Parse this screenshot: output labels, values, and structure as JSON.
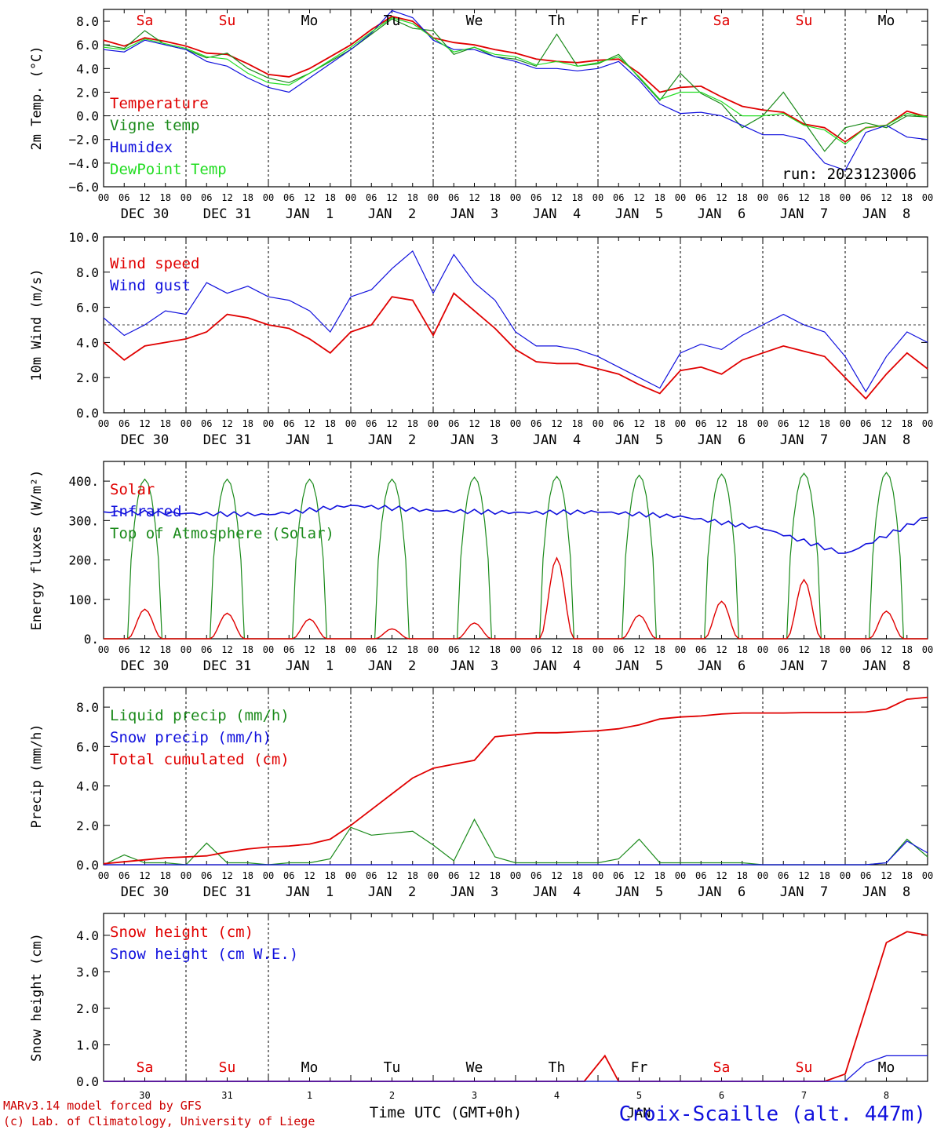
{
  "colors": {
    "red": "#e00000",
    "green": "#1a8a1a",
    "blue": "#1010dd",
    "light_green": "#22dd22",
    "black": "#000000",
    "weekend": "#e00000",
    "weekday": "#000000"
  },
  "day_labels": [
    "Sa",
    "Su",
    "Mo",
    "Tu",
    "We",
    "Th",
    "Fr",
    "Sa",
    "Su",
    "Mo"
  ],
  "day_weekend": [
    true,
    true,
    false,
    false,
    false,
    false,
    false,
    true,
    true,
    false
  ],
  "date_labels": [
    "DEC 30",
    "DEC 31",
    "JAN  1",
    "JAN  2",
    "JAN  3",
    "JAN  4",
    "JAN  5",
    "JAN  6",
    "JAN  7",
    "JAN  8"
  ],
  "hour_labels": [
    "00",
    "06",
    "12",
    "18"
  ],
  "bottom_day_numbers": [
    "30",
    "31",
    "1",
    "2",
    "3",
    "4",
    "5",
    "6",
    "7",
    "8"
  ],
  "run_label": "run: 2023123006",
  "bottom_axis_label": "Time UTC (GMT+0h)",
  "footer": {
    "line1": "MARv3.14 model forced by GFS",
    "line2": "(c) Lab. of Climatology, University of Liege",
    "location": "Croix-Scaille (alt. 447m)",
    "month_under": "JAN"
  },
  "chart_data": [
    {
      "type": "line",
      "ylabel": "2m Temp. (°C)",
      "ylim": [
        -6,
        9
      ],
      "yticks": [
        "8.0",
        "6.0",
        "4.0",
        "2.0",
        "0.0",
        "−2.0",
        "−4.0",
        "−6.0"
      ],
      "ytick_values": [
        8,
        6,
        4,
        2,
        0,
        -2,
        -4,
        -6
      ],
      "reference_line": 0,
      "x_hours": [
        0,
        6,
        12,
        18,
        24,
        30,
        36,
        42,
        48,
        54,
        60,
        66,
        72,
        78,
        84,
        90,
        96,
        102,
        108,
        114,
        120,
        126,
        132,
        138,
        144,
        150,
        156,
        162,
        168,
        174,
        180,
        186,
        192,
        198,
        204,
        210,
        216,
        222,
        228,
        234,
        240
      ],
      "series": [
        {
          "name": "Temperature",
          "color": "red",
          "values": [
            6.4,
            5.9,
            6.6,
            6.3,
            5.9,
            5.3,
            5.2,
            4.4,
            3.5,
            3.3,
            4.0,
            5.0,
            6.0,
            7.3,
            8.4,
            8.0,
            6.6,
            6.2,
            6.0,
            5.6,
            5.3,
            4.8,
            4.6,
            4.5,
            4.7,
            4.8,
            3.6,
            2.0,
            2.4,
            2.5,
            1.6,
            0.8,
            0.5,
            0.3,
            -0.7,
            -1.0,
            -2.2,
            -1.0,
            -0.8,
            0.4,
            -0.1
          ]
        },
        {
          "name": "Vigne temp",
          "color": "green",
          "values": [
            6.0,
            5.7,
            7.2,
            6.0,
            5.6,
            4.9,
            5.3,
            4.0,
            3.2,
            2.8,
            3.6,
            4.6,
            5.6,
            6.9,
            8.2,
            7.4,
            7.2,
            5.2,
            5.8,
            5.0,
            4.8,
            4.2,
            6.9,
            4.2,
            4.4,
            5.2,
            3.2,
            1.3,
            3.6,
            1.9,
            1.0,
            -1.0,
            0.0,
            2.0,
            -0.5,
            -3.0,
            -1.0,
            -0.6,
            -1.0,
            0.0,
            -0.1
          ]
        },
        {
          "name": "Humidex",
          "color": "blue",
          "values": [
            5.6,
            5.4,
            6.4,
            6.0,
            5.6,
            4.6,
            4.2,
            3.2,
            2.4,
            2.0,
            3.2,
            4.4,
            5.6,
            7.0,
            8.9,
            8.3,
            6.4,
            5.6,
            5.6,
            5.0,
            4.6,
            4.0,
            4.0,
            3.8,
            4.0,
            4.6,
            3.0,
            1.0,
            0.2,
            0.3,
            0.0,
            -0.8,
            -1.6,
            -1.6,
            -2.0,
            -4.0,
            -4.6,
            -1.4,
            -0.8,
            -1.8,
            -2.0
          ]
        },
        {
          "name": "DewPoint Temp",
          "color": "light_green",
          "values": [
            5.8,
            5.6,
            6.5,
            6.1,
            5.7,
            5.0,
            4.8,
            3.6,
            2.8,
            2.6,
            3.6,
            4.7,
            5.8,
            7.1,
            8.3,
            7.8,
            6.6,
            5.4,
            5.8,
            5.2,
            5.0,
            4.3,
            4.6,
            4.2,
            4.5,
            5.0,
            3.3,
            1.4,
            2.0,
            2.0,
            1.2,
            0.0,
            0.0,
            0.2,
            -0.8,
            -1.2,
            -2.4,
            -1.0,
            -0.8,
            0.2,
            -0.1
          ]
        }
      ]
    },
    {
      "type": "line",
      "ylabel": "10m Wind (m/s)",
      "ylim": [
        0,
        10
      ],
      "yticks": [
        "10.0",
        "8.0",
        "6.0",
        "4.0",
        "2.0",
        "0.0"
      ],
      "ytick_values": [
        10,
        8,
        6,
        4,
        2,
        0
      ],
      "reference_line": 5,
      "x_hours": [
        0,
        6,
        12,
        18,
        24,
        30,
        36,
        42,
        48,
        54,
        60,
        66,
        72,
        78,
        84,
        90,
        96,
        102,
        108,
        114,
        120,
        126,
        132,
        138,
        144,
        150,
        156,
        162,
        168,
        174,
        180,
        186,
        192,
        198,
        204,
        210,
        216,
        222,
        228,
        234,
        240
      ],
      "series": [
        {
          "name": "Wind speed",
          "color": "red",
          "values": [
            4.0,
            3.0,
            3.8,
            4.0,
            4.2,
            4.6,
            5.6,
            5.4,
            5.0,
            4.8,
            4.2,
            3.4,
            4.6,
            5.0,
            6.6,
            6.4,
            4.4,
            6.8,
            5.8,
            4.8,
            3.6,
            2.9,
            2.8,
            2.8,
            2.5,
            2.2,
            1.6,
            1.1,
            2.4,
            2.6,
            2.2,
            3.0,
            3.4,
            3.8,
            3.5,
            3.2,
            2.0,
            0.8,
            2.2,
            3.4,
            2.5
          ]
        },
        {
          "name": "Wind gust",
          "color": "blue",
          "values": [
            5.4,
            4.4,
            5.0,
            5.8,
            5.6,
            7.4,
            6.8,
            7.2,
            6.6,
            6.4,
            5.8,
            4.6,
            6.6,
            7.0,
            8.2,
            9.2,
            6.8,
            9.0,
            7.4,
            6.4,
            4.6,
            3.8,
            3.8,
            3.6,
            3.2,
            2.6,
            2.0,
            1.4,
            3.4,
            3.9,
            3.6,
            4.4,
            5.0,
            5.6,
            5.0,
            4.6,
            3.2,
            1.2,
            3.2,
            4.6,
            4.0
          ]
        }
      ]
    },
    {
      "type": "line",
      "ylabel": "Energy fluxes (W/m²)",
      "ylim": [
        0,
        450
      ],
      "yticks": [
        "400.",
        "300.",
        "200.",
        "100.",
        "0."
      ],
      "ytick_values": [
        400,
        300,
        200,
        100,
        0
      ],
      "x_hours": [
        0,
        24,
        48,
        72,
        96,
        120,
        144,
        168,
        192,
        216,
        240
      ],
      "solar_peaks": [
        75,
        65,
        50,
        25,
        40,
        205,
        60,
        95,
        150,
        70
      ],
      "toa_peaks": [
        405,
        405,
        405,
        405,
        410,
        412,
        415,
        418,
        420,
        422
      ],
      "series": [
        {
          "name": "Solar",
          "color": "red",
          "values": [
            0,
            0,
            0,
            0,
            0,
            0,
            0,
            0,
            0,
            0,
            0
          ]
        },
        {
          "name": "Infrared",
          "color": "blue",
          "values": [
            322,
            318,
            315,
            338,
            325,
            320,
            322,
            310,
            280,
            215,
            310
          ]
        },
        {
          "name": "Top of Atmosphere (Solar)",
          "color": "green",
          "values": [
            0,
            0,
            0,
            0,
            0,
            0,
            0,
            0,
            0,
            0,
            0
          ]
        }
      ]
    },
    {
      "type": "line",
      "ylabel": "Precip (mm/h)",
      "ylim": [
        0,
        9
      ],
      "yticks": [
        "8.0",
        "6.0",
        "4.0",
        "2.0",
        "0.0"
      ],
      "ytick_values": [
        8,
        6,
        4,
        2,
        0
      ],
      "x_hours": [
        0,
        6,
        12,
        18,
        24,
        30,
        36,
        42,
        48,
        54,
        60,
        66,
        72,
        78,
        84,
        90,
        96,
        102,
        108,
        114,
        120,
        126,
        132,
        138,
        144,
        150,
        156,
        162,
        168,
        174,
        180,
        186,
        192,
        198,
        204,
        210,
        216,
        222,
        228,
        234,
        240
      ],
      "series": [
        {
          "name": "Liquid precip (mm/h)",
          "color": "green",
          "values": [
            0.0,
            0.5,
            0.1,
            0.1,
            0.0,
            1.1,
            0.1,
            0.1,
            0.0,
            0.1,
            0.1,
            0.3,
            1.9,
            1.5,
            1.6,
            1.7,
            1.0,
            0.2,
            2.3,
            0.4,
            0.1,
            0.1,
            0.1,
            0.1,
            0.1,
            0.3,
            1.3,
            0.1,
            0.1,
            0.1,
            0.1,
            0.1,
            0.0,
            0.0,
            0.0,
            0.0,
            0.0,
            0.0,
            0.1,
            1.3,
            0.4
          ]
        },
        {
          "name": "Snow precip (mm/h)",
          "color": "blue",
          "values": [
            0,
            0,
            0,
            0,
            0,
            0,
            0,
            0,
            0,
            0,
            0,
            0,
            0,
            0,
            0,
            0,
            0,
            0,
            0,
            0,
            0,
            0,
            0,
            0,
            0,
            0,
            0,
            0,
            0,
            0,
            0,
            0,
            0,
            0,
            0,
            0,
            0,
            0,
            0.1,
            1.2,
            0.6
          ]
        },
        {
          "name": "Total cumulated (cm)",
          "color": "red",
          "values": [
            0.05,
            0.15,
            0.25,
            0.35,
            0.4,
            0.45,
            0.65,
            0.8,
            0.9,
            0.95,
            1.05,
            1.3,
            2.0,
            2.8,
            3.6,
            4.4,
            4.9,
            5.1,
            5.3,
            6.5,
            6.6,
            6.7,
            6.7,
            6.75,
            6.8,
            6.9,
            7.1,
            7.4,
            7.5,
            7.55,
            7.65,
            7.7,
            7.7,
            7.7,
            7.72,
            7.72,
            7.73,
            7.75,
            7.9,
            8.4,
            8.5
          ]
        }
      ]
    },
    {
      "type": "line",
      "ylabel": "Snow height (cm)",
      "ylim": [
        0,
        4.6
      ],
      "yticks": [
        "4.0",
        "3.0",
        "2.0",
        "1.0",
        "0.0"
      ],
      "ytick_values": [
        4,
        3,
        2,
        1,
        0
      ],
      "x_hours": [
        0,
        24,
        48,
        72,
        96,
        120,
        140,
        146,
        150,
        168,
        192,
        210,
        216,
        222,
        228,
        234,
        240
      ],
      "series": [
        {
          "name": "Snow height (cm)",
          "color": "red",
          "values": [
            0,
            0,
            0,
            0,
            0,
            0,
            0,
            0.7,
            0,
            0,
            0,
            0,
            0.2,
            2.0,
            3.8,
            4.1,
            4.0
          ]
        },
        {
          "name": "Snow height (cm W.E.)",
          "color": "blue",
          "values": [
            0,
            0,
            0,
            0,
            0,
            0,
            0,
            0,
            0,
            0,
            0,
            0,
            0,
            0.5,
            0.7,
            0.7,
            0.7
          ]
        }
      ]
    }
  ]
}
